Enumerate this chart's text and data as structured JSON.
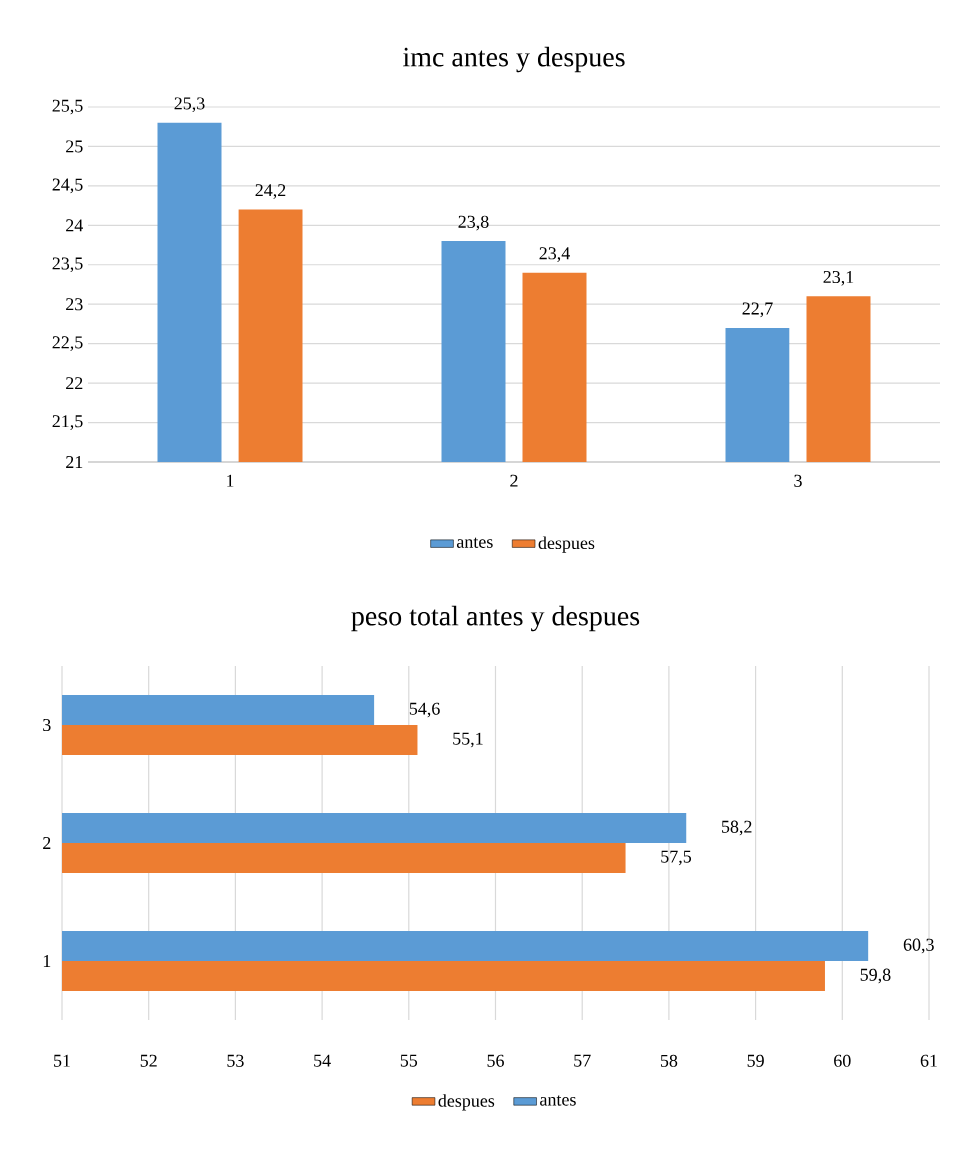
{
  "chart_data": [
    {
      "type": "bar",
      "title": "imc antes y despues",
      "categories": [
        "1",
        "2",
        "3"
      ],
      "series": [
        {
          "name": "antes",
          "color": "#5b9bd5",
          "values": [
            25.3,
            23.8,
            22.7
          ],
          "value_labels": [
            "25,3",
            "23,8",
            "22,7"
          ]
        },
        {
          "name": "despues",
          "color": "#ed7d31",
          "values": [
            24.2,
            23.4,
            23.1
          ],
          "value_labels": [
            "24,2",
            "23,4",
            "23,1"
          ]
        }
      ],
      "ylim": [
        21,
        25.5
      ],
      "yticks": [
        21,
        {
          "value": 21.5,
          "label": "21,5"
        },
        22,
        {
          "value": 22.5,
          "label": "22,5"
        },
        23,
        {
          "value": 23.5,
          "label": "23,5"
        },
        24,
        {
          "value": 24.5,
          "label": "24,5"
        },
        25,
        {
          "value": 25.5,
          "label": "25,5"
        }
      ],
      "grid": "y",
      "legend": "bottom"
    },
    {
      "type": "bar",
      "orientation": "horizontal",
      "title": "peso total antes y despues",
      "categories": [
        "3",
        "2",
        "1"
      ],
      "series": [
        {
          "name": "despues",
          "color": "#ed7d31",
          "values": [
            55.1,
            57.5,
            59.8
          ],
          "value_labels": [
            "55,1",
            "57,5",
            "59,8"
          ]
        },
        {
          "name": "antes",
          "color": "#5b9bd5",
          "values": [
            54.6,
            58.2,
            60.3
          ],
          "value_labels": [
            "54,6",
            "58,2",
            "60,3"
          ]
        }
      ],
      "xlim": [
        51,
        61
      ],
      "xticks": [
        51,
        52,
        53,
        54,
        55,
        56,
        57,
        58,
        59,
        60,
        61
      ],
      "grid": "x",
      "legend": "bottom"
    }
  ]
}
